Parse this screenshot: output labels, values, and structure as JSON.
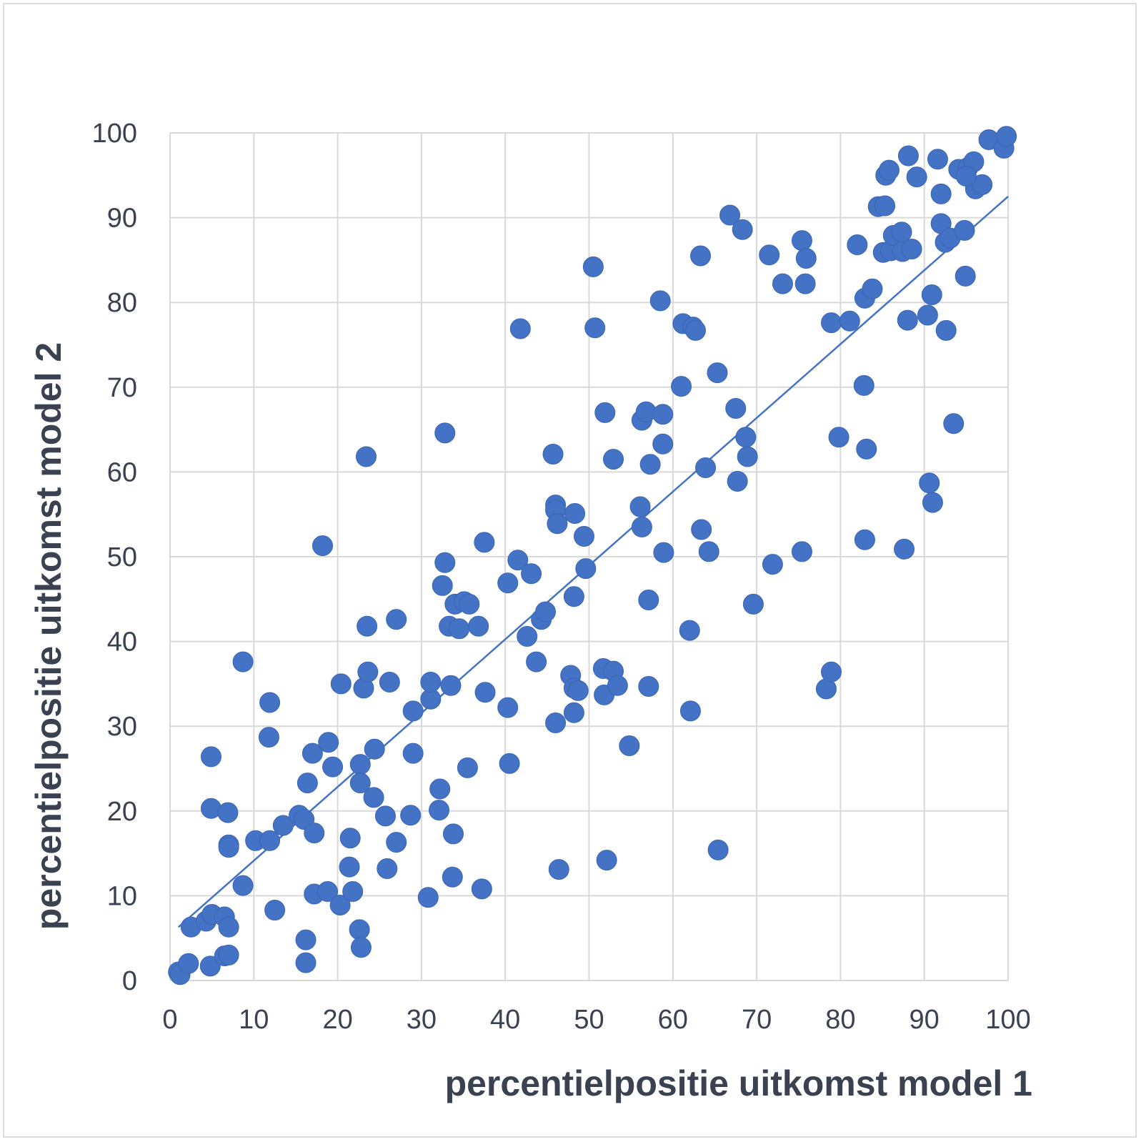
{
  "chart_data": {
    "type": "scatter",
    "title": "",
    "xlabel": "percentielpositie uitkomst model 1",
    "ylabel": "percentielpositie uitkomst model 2",
    "xlim": [
      0,
      100
    ],
    "ylim": [
      0,
      100
    ],
    "xticks": [
      0,
      10,
      20,
      30,
      40,
      50,
      60,
      70,
      80,
      90,
      100
    ],
    "yticks": [
      0,
      10,
      20,
      30,
      40,
      50,
      60,
      70,
      80,
      90,
      100
    ],
    "grid": true,
    "legend": "none",
    "color": "#4472c4",
    "trendline": {
      "type": "linear",
      "x": [
        1,
        100
      ],
      "y": [
        6.3,
        92.5
      ]
    },
    "points": [
      [
        1,
        1
      ],
      [
        1.2,
        0.7
      ],
      [
        2.2,
        2
      ],
      [
        2.5,
        6.3
      ],
      [
        4.3,
        7
      ],
      [
        5,
        7.8
      ],
      [
        6.5,
        7.5
      ],
      [
        7,
        6.3
      ],
      [
        4.8,
        1.7
      ],
      [
        6.5,
        2.9
      ],
      [
        7,
        3
      ],
      [
        4.9,
        26.4
      ],
      [
        4.9,
        20.3
      ],
      [
        6.9,
        19.8
      ],
      [
        7,
        16
      ],
      [
        7,
        15.7
      ],
      [
        8.7,
        11.2
      ],
      [
        8.7,
        37.6
      ],
      [
        10.2,
        16.5
      ],
      [
        11.8,
        28.7
      ],
      [
        11.9,
        32.8
      ],
      [
        11.9,
        16.5
      ],
      [
        12.5,
        8.3
      ],
      [
        13.5,
        18.3
      ],
      [
        15.4,
        19.5
      ],
      [
        16,
        19
      ],
      [
        16.2,
        4.8
      ],
      [
        16.2,
        2.1
      ],
      [
        16.4,
        23.3
      ],
      [
        17,
        26.8
      ],
      [
        17.2,
        10.2
      ],
      [
        17.2,
        17.4
      ],
      [
        18.2,
        51.3
      ],
      [
        18.8,
        10.5
      ],
      [
        18.9,
        28.1
      ],
      [
        19.4,
        25.2
      ],
      [
        20.3,
        8.9
      ],
      [
        20.4,
        35
      ],
      [
        21.4,
        13.4
      ],
      [
        21.5,
        16.8
      ],
      [
        21.8,
        10.5
      ],
      [
        22.6,
        6
      ],
      [
        22.8,
        3.9
      ],
      [
        22.7,
        25.5
      ],
      [
        22.7,
        23.3
      ],
      [
        23.1,
        34.5
      ],
      [
        23.5,
        41.8
      ],
      [
        23.6,
        36.4
      ],
      [
        23.4,
        61.8
      ],
      [
        24.3,
        21.6
      ],
      [
        24.4,
        27.3
      ],
      [
        25.7,
        19.4
      ],
      [
        25.9,
        13.2
      ],
      [
        26.2,
        35.2
      ],
      [
        27,
        42.6
      ],
      [
        27,
        16.3
      ],
      [
        28.7,
        19.5
      ],
      [
        29,
        31.8
      ],
      [
        29,
        26.8
      ],
      [
        30.8,
        9.8
      ],
      [
        31.1,
        33.2
      ],
      [
        31.1,
        35.2
      ],
      [
        32.2,
        22.6
      ],
      [
        32.1,
        20.1
      ],
      [
        32.5,
        46.6
      ],
      [
        32.8,
        49.3
      ],
      [
        32.8,
        64.6
      ],
      [
        33.3,
        41.8
      ],
      [
        33.8,
        17.3
      ],
      [
        33.7,
        12.2
      ],
      [
        33.5,
        34.8
      ],
      [
        34,
        44.4
      ],
      [
        34.5,
        41.5
      ],
      [
        35.1,
        44.7
      ],
      [
        35.7,
        44.4
      ],
      [
        35.5,
        25.1
      ],
      [
        37.2,
        10.8
      ],
      [
        36.8,
        41.8
      ],
      [
        37.5,
        51.7
      ],
      [
        37.6,
        34
      ],
      [
        40.3,
        46.9
      ],
      [
        40.3,
        32.2
      ],
      [
        40.5,
        25.6
      ],
      [
        41.5,
        49.6
      ],
      [
        41.8,
        76.9
      ],
      [
        42.6,
        40.6
      ],
      [
        43.1,
        48
      ],
      [
        43.7,
        37.6
      ],
      [
        44.3,
        42.6
      ],
      [
        44.8,
        43.5
      ],
      [
        45.7,
        62.1
      ],
      [
        46,
        56.1
      ],
      [
        46,
        55.5
      ],
      [
        46.2,
        53.9
      ],
      [
        46,
        30.4
      ],
      [
        46.4,
        13.1
      ],
      [
        47.8,
        36
      ],
      [
        48.2,
        34.5
      ],
      [
        48.2,
        31.6
      ],
      [
        48.2,
        45.3
      ],
      [
        48.3,
        55.1
      ],
      [
        48.7,
        34.2
      ],
      [
        49.4,
        52.4
      ],
      [
        49.6,
        48.6
      ],
      [
        50.5,
        84.2
      ],
      [
        50.7,
        77
      ],
      [
        51.7,
        36.8
      ],
      [
        51.8,
        33.7
      ],
      [
        51.9,
        67
      ],
      [
        52.1,
        14.2
      ],
      [
        52.9,
        36.5
      ],
      [
        53.4,
        34.8
      ],
      [
        52.9,
        61.5
      ],
      [
        54.8,
        27.7
      ],
      [
        56.1,
        55.9
      ],
      [
        56.3,
        53.5
      ],
      [
        56.3,
        66.1
      ],
      [
        56.8,
        67.1
      ],
      [
        57.1,
        44.9
      ],
      [
        57.1,
        34.7
      ],
      [
        57.3,
        60.9
      ],
      [
        58.5,
        80.2
      ],
      [
        58.8,
        63.3
      ],
      [
        58.8,
        66.8
      ],
      [
        58.9,
        50.5
      ],
      [
        61,
        70.1
      ],
      [
        61.2,
        77.5
      ],
      [
        62,
        41.3
      ],
      [
        62.1,
        31.8
      ],
      [
        62.4,
        77.1
      ],
      [
        62.7,
        76.7
      ],
      [
        63.3,
        85.5
      ],
      [
        63.4,
        53.2
      ],
      [
        63.9,
        60.5
      ],
      [
        64.3,
        50.6
      ],
      [
        65.3,
        71.7
      ],
      [
        65.4,
        15.4
      ],
      [
        66.8,
        90.3
      ],
      [
        67.5,
        67.5
      ],
      [
        67.7,
        58.9
      ],
      [
        68.3,
        88.6
      ],
      [
        68.7,
        64.1
      ],
      [
        68.9,
        61.8
      ],
      [
        69.6,
        44.4
      ],
      [
        71.5,
        85.6
      ],
      [
        71.9,
        49.1
      ],
      [
        73.1,
        82.2
      ],
      [
        75.4,
        87.3
      ],
      [
        75.4,
        50.6
      ],
      [
        75.8,
        82.2
      ],
      [
        75.9,
        85.2
      ],
      [
        78.3,
        34.4
      ],
      [
        78.9,
        36.4
      ],
      [
        78.9,
        77.6
      ],
      [
        79.8,
        64.1
      ],
      [
        81.1,
        77.8
      ],
      [
        82,
        86.8
      ],
      [
        82.9,
        80.5
      ],
      [
        82.9,
        52
      ],
      [
        82.8,
        70.2
      ],
      [
        83.1,
        62.7
      ],
      [
        83.8,
        81.6
      ],
      [
        84.5,
        91.3
      ],
      [
        85.1,
        85.9
      ],
      [
        85.3,
        91.4
      ],
      [
        85.4,
        95
      ],
      [
        85.8,
        95.6
      ],
      [
        86,
        86.1
      ],
      [
        86.3,
        87.9
      ],
      [
        87.3,
        88.3
      ],
      [
        87.4,
        86
      ],
      [
        87.6,
        50.9
      ],
      [
        88.1,
        97.3
      ],
      [
        88,
        77.9
      ],
      [
        88.5,
        86.3
      ],
      [
        89.1,
        94.8
      ],
      [
        90.4,
        78.5
      ],
      [
        90.6,
        58.7
      ],
      [
        90.9,
        80.9
      ],
      [
        91,
        56.4
      ],
      [
        91.6,
        96.9
      ],
      [
        92,
        92.8
      ],
      [
        92,
        89.3
      ],
      [
        92.5,
        87.1
      ],
      [
        92.6,
        76.7
      ],
      [
        93.1,
        87.6
      ],
      [
        93.5,
        65.7
      ],
      [
        94.1,
        95.7
      ],
      [
        94.8,
        88.5
      ],
      [
        94.9,
        83.1
      ],
      [
        95.2,
        95.9
      ],
      [
        95.9,
        96.6
      ],
      [
        96.1,
        93.4
      ],
      [
        96.9,
        93.9
      ],
      [
        97.7,
        99.2
      ],
      [
        99.5,
        98.2
      ],
      [
        99.8,
        99.6
      ],
      [
        95,
        94.9
      ]
    ]
  }
}
